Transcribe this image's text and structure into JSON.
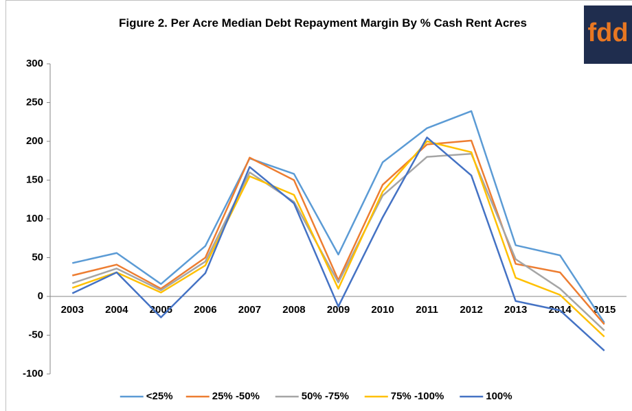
{
  "chart_data": {
    "type": "line",
    "title": "Figure 2. Per Acre Median Debt Repayment Margin By % Cash Rent Acres",
    "logo": "fdd",
    "categories": [
      "2003",
      "2004",
      "2005",
      "2006",
      "2007",
      "2008",
      "2009",
      "2010",
      "2011",
      "2012",
      "2013",
      "2014",
      "2015"
    ],
    "series": [
      {
        "name": "<25%",
        "color": "#5b9bd5",
        "values": [
          43,
          56,
          16,
          65,
          178,
          158,
          54,
          173,
          217,
          239,
          66,
          53,
          -34
        ]
      },
      {
        "name": "25% -50%",
        "color": "#ed7d31",
        "values": [
          27,
          41,
          10,
          50,
          179,
          150,
          21,
          144,
          196,
          201,
          42,
          31,
          -36
        ]
      },
      {
        "name": "50% -75%",
        "color": "#a5a5a5",
        "values": [
          17,
          36,
          8,
          45,
          160,
          122,
          18,
          130,
          180,
          184,
          48,
          10,
          -44
        ]
      },
      {
        "name": "75% -100%",
        "color": "#ffc000",
        "values": [
          11,
          31,
          5,
          40,
          155,
          131,
          10,
          135,
          200,
          186,
          24,
          2,
          -52
        ]
      },
      {
        "name": "100%",
        "color": "#4472c4",
        "values": [
          4,
          31,
          -27,
          30,
          167,
          120,
          -13,
          102,
          205,
          156,
          -6,
          -18,
          -70
        ]
      }
    ],
    "ylim": [
      -100,
      300
    ],
    "yticks": [
      -100,
      -50,
      0,
      50,
      100,
      150,
      200,
      250,
      300
    ],
    "grid": false,
    "legend": "bottom"
  }
}
